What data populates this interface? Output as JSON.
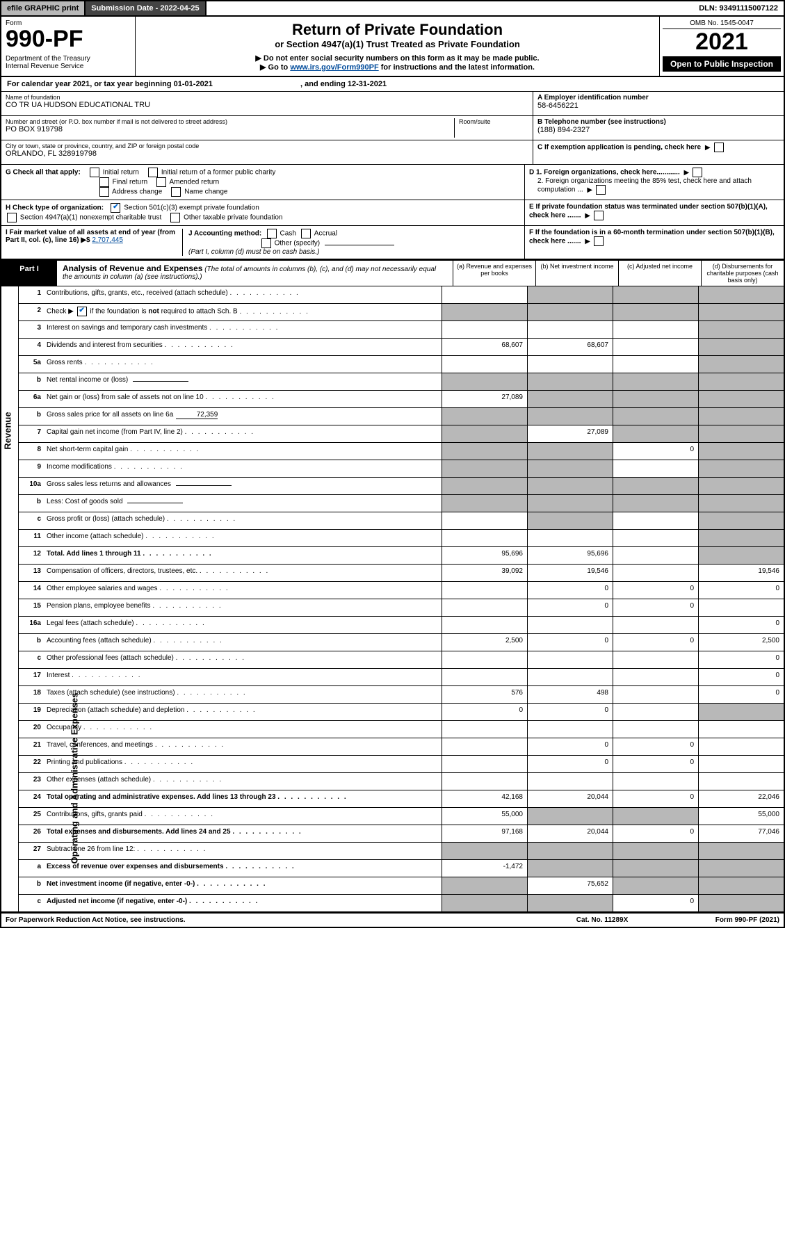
{
  "topbar": {
    "efile": "efile GRAPHIC print",
    "subdate": "Submission Date - 2022-04-25",
    "dln": "DLN: 93491115007122"
  },
  "header": {
    "form_label": "Form",
    "form_num": "990-PF",
    "dept": "Department of the Treasury\nInternal Revenue Service",
    "title1": "Return of Private Foundation",
    "title2": "or Section 4947(a)(1) Trust Treated as Private Foundation",
    "instr1": "▶ Do not enter social security numbers on this form as it may be made public.",
    "instr2_pre": "▶ Go to ",
    "instr2_link": "www.irs.gov/Form990PF",
    "instr2_post": " for instructions and the latest information.",
    "omb": "OMB No. 1545-0047",
    "year": "2021",
    "open_public": "Open to Public Inspection"
  },
  "calendar": {
    "text_a": "For calendar year 2021, or tax year beginning 01-01-2021",
    "text_b": ", and ending 12-31-2021"
  },
  "info": {
    "name_label": "Name of foundation",
    "name": "CO TR UA HUDSON EDUCATIONAL TRU",
    "addr_label": "Number and street (or P.O. box number if mail is not delivered to street address)",
    "addr": "PO BOX 919798",
    "room_label": "Room/suite",
    "city_label": "City or town, state or province, country, and ZIP or foreign postal code",
    "city": "ORLANDO, FL 328919798",
    "ein_label": "A Employer identification number",
    "ein": "58-6456221",
    "phone_label": "B Telephone number (see instructions)",
    "phone": "(188) 894-2327",
    "c_label": "C If exemption application is pending, check here",
    "d1": "D 1. Foreign organizations, check here............",
    "d2": "2. Foreign organizations meeting the 85% test, check here and attach computation ...",
    "e_label": "E If private foundation status was terminated under section 507(b)(1)(A), check here .......",
    "f_label": "F If the foundation is in a 60-month termination under section 507(b)(1)(B), check here ......."
  },
  "g_check": {
    "label": "G Check all that apply:",
    "opts": [
      "Initial return",
      "Initial return of a former public charity",
      "Final return",
      "Amended return",
      "Address change",
      "Name change"
    ]
  },
  "h_check": {
    "label": "H Check type of organization:",
    "opt1": "Section 501(c)(3) exempt private foundation",
    "opt2": "Section 4947(a)(1) nonexempt charitable trust",
    "opt3": "Other taxable private foundation"
  },
  "i_block": {
    "label": "I Fair market value of all assets at end of year (from Part II, col. (c), line 16) ▶$ ",
    "value": "2,707,445"
  },
  "j_block": {
    "label": "J Accounting method:",
    "cash": "Cash",
    "accrual": "Accrual",
    "other": "Other (specify)",
    "note": "(Part I, column (d) must be on cash basis.)"
  },
  "part1": {
    "label": "Part I",
    "title": "Analysis of Revenue and Expenses",
    "sub": " (The total of amounts in columns (b), (c), and (d) may not necessarily equal the amounts in column (a) (see instructions).)",
    "col_a": "(a) Revenue and expenses per books",
    "col_b": "(b) Net investment income",
    "col_c": "(c) Adjusted net income",
    "col_d": "(d) Disbursements for charitable purposes (cash basis only)"
  },
  "sidebars": {
    "revenue": "Revenue",
    "expenses": "Operating and Administrative Expenses"
  },
  "rows": [
    {
      "n": "1",
      "d": "Contributions, gifts, grants, etc., received (attach schedule)",
      "a": "",
      "b": "",
      "c": "",
      "dd": "",
      "ga": false,
      "gb": true,
      "gc": true,
      "gd": true
    },
    {
      "n": "2",
      "d": "Check ▶ ☑ if the foundation is not required to attach Sch. B",
      "a": "",
      "b": "",
      "c": "",
      "dd": "",
      "ga": true,
      "gb": true,
      "gc": true,
      "gd": true,
      "checkbox": true
    },
    {
      "n": "3",
      "d": "Interest on savings and temporary cash investments",
      "a": "",
      "b": "",
      "c": "",
      "dd": "",
      "ga": false,
      "gb": false,
      "gc": false,
      "gd": true
    },
    {
      "n": "4",
      "d": "Dividends and interest from securities",
      "a": "68,607",
      "b": "68,607",
      "c": "",
      "dd": "",
      "ga": false,
      "gb": false,
      "gc": false,
      "gd": true
    },
    {
      "n": "5a",
      "d": "Gross rents",
      "a": "",
      "b": "",
      "c": "",
      "dd": "",
      "ga": false,
      "gb": false,
      "gc": false,
      "gd": true
    },
    {
      "n": "b",
      "d": "Net rental income or (loss)",
      "a": "",
      "b": "",
      "c": "",
      "dd": "",
      "ga": true,
      "gb": true,
      "gc": true,
      "gd": true,
      "inline": true
    },
    {
      "n": "6a",
      "d": "Net gain or (loss) from sale of assets not on line 10",
      "a": "27,089",
      "b": "",
      "c": "",
      "dd": "",
      "ga": false,
      "gb": true,
      "gc": true,
      "gd": true
    },
    {
      "n": "b",
      "d": "Gross sales price for all assets on line 6a",
      "a": "",
      "b": "",
      "c": "",
      "dd": "",
      "ga": true,
      "gb": true,
      "gc": true,
      "gd": true,
      "inline_val": "72,359"
    },
    {
      "n": "7",
      "d": "Capital gain net income (from Part IV, line 2)",
      "a": "",
      "b": "27,089",
      "c": "",
      "dd": "",
      "ga": true,
      "gb": false,
      "gc": true,
      "gd": true
    },
    {
      "n": "8",
      "d": "Net short-term capital gain",
      "a": "",
      "b": "",
      "c": "0",
      "dd": "",
      "ga": true,
      "gb": true,
      "gc": false,
      "gd": true
    },
    {
      "n": "9",
      "d": "Income modifications",
      "a": "",
      "b": "",
      "c": "",
      "dd": "",
      "ga": true,
      "gb": true,
      "gc": false,
      "gd": true
    },
    {
      "n": "10a",
      "d": "Gross sales less returns and allowances",
      "a": "",
      "b": "",
      "c": "",
      "dd": "",
      "ga": true,
      "gb": true,
      "gc": true,
      "gd": true,
      "inline": true
    },
    {
      "n": "b",
      "d": "Less: Cost of goods sold",
      "a": "",
      "b": "",
      "c": "",
      "dd": "",
      "ga": true,
      "gb": true,
      "gc": true,
      "gd": true,
      "inline": true
    },
    {
      "n": "c",
      "d": "Gross profit or (loss) (attach schedule)",
      "a": "",
      "b": "",
      "c": "",
      "dd": "",
      "ga": false,
      "gb": true,
      "gc": false,
      "gd": true
    },
    {
      "n": "11",
      "d": "Other income (attach schedule)",
      "a": "",
      "b": "",
      "c": "",
      "dd": "",
      "ga": false,
      "gb": false,
      "gc": false,
      "gd": true
    },
    {
      "n": "12",
      "d": "Total. Add lines 1 through 11",
      "a": "95,696",
      "b": "95,696",
      "c": "",
      "dd": "",
      "ga": false,
      "gb": false,
      "gc": false,
      "gd": true,
      "bold": true
    },
    {
      "n": "13",
      "d": "Compensation of officers, directors, trustees, etc.",
      "a": "39,092",
      "b": "19,546",
      "c": "",
      "dd": "19,546"
    },
    {
      "n": "14",
      "d": "Other employee salaries and wages",
      "a": "",
      "b": "0",
      "c": "0",
      "dd": "0"
    },
    {
      "n": "15",
      "d": "Pension plans, employee benefits",
      "a": "",
      "b": "0",
      "c": "0",
      "dd": ""
    },
    {
      "n": "16a",
      "d": "Legal fees (attach schedule)",
      "a": "",
      "b": "",
      "c": "",
      "dd": "0"
    },
    {
      "n": "b",
      "d": "Accounting fees (attach schedule)",
      "a": "2,500",
      "b": "0",
      "c": "0",
      "dd": "2,500"
    },
    {
      "n": "c",
      "d": "Other professional fees (attach schedule)",
      "a": "",
      "b": "",
      "c": "",
      "dd": "0"
    },
    {
      "n": "17",
      "d": "Interest",
      "a": "",
      "b": "",
      "c": "",
      "dd": "0"
    },
    {
      "n": "18",
      "d": "Taxes (attach schedule) (see instructions)",
      "a": "576",
      "b": "498",
      "c": "",
      "dd": "0"
    },
    {
      "n": "19",
      "d": "Depreciation (attach schedule) and depletion",
      "a": "0",
      "b": "0",
      "c": "",
      "dd": "",
      "gd": true
    },
    {
      "n": "20",
      "d": "Occupancy",
      "a": "",
      "b": "",
      "c": "",
      "dd": ""
    },
    {
      "n": "21",
      "d": "Travel, conferences, and meetings",
      "a": "",
      "b": "0",
      "c": "0",
      "dd": ""
    },
    {
      "n": "22",
      "d": "Printing and publications",
      "a": "",
      "b": "0",
      "c": "0",
      "dd": ""
    },
    {
      "n": "23",
      "d": "Other expenses (attach schedule)",
      "a": "",
      "b": "",
      "c": "",
      "dd": ""
    },
    {
      "n": "24",
      "d": "Total operating and administrative expenses. Add lines 13 through 23",
      "a": "42,168",
      "b": "20,044",
      "c": "0",
      "dd": "22,046",
      "bold": true
    },
    {
      "n": "25",
      "d": "Contributions, gifts, grants paid",
      "a": "55,000",
      "b": "",
      "c": "",
      "dd": "55,000",
      "gb": true,
      "gc": true
    },
    {
      "n": "26",
      "d": "Total expenses and disbursements. Add lines 24 and 25",
      "a": "97,168",
      "b": "20,044",
      "c": "0",
      "dd": "77,046",
      "bold": true
    },
    {
      "n": "27",
      "d": "Subtract line 26 from line 12:",
      "a": "",
      "b": "",
      "c": "",
      "dd": "",
      "ga": true,
      "gb": true,
      "gc": true,
      "gd": true
    },
    {
      "n": "a",
      "d": "Excess of revenue over expenses and disbursements",
      "a": "-1,472",
      "b": "",
      "c": "",
      "dd": "",
      "bold": true,
      "gb": true,
      "gc": true,
      "gd": true
    },
    {
      "n": "b",
      "d": "Net investment income (if negative, enter -0-)",
      "a": "",
      "b": "75,652",
      "c": "",
      "dd": "",
      "bold": true,
      "ga": true,
      "gc": true,
      "gd": true
    },
    {
      "n": "c",
      "d": "Adjusted net income (if negative, enter -0-)",
      "a": "",
      "b": "",
      "c": "0",
      "dd": "",
      "bold": true,
      "ga": true,
      "gb": true,
      "gd": true
    }
  ],
  "footer": {
    "left": "For Paperwork Reduction Act Notice, see instructions.",
    "mid": "Cat. No. 11289X",
    "right": "Form 990-PF (2021)"
  },
  "colors": {
    "grey_bg": "#b8b8b8",
    "dark_bg": "#444444",
    "link": "#004b9b"
  }
}
